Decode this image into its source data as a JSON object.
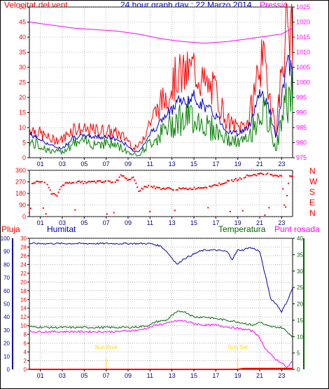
{
  "title": "24 hour graph day : 22 Marzo 2014",
  "colors": {
    "wind": "#ff0000",
    "gust": "#0000cc",
    "avg": "#008000",
    "pressure": "#ff00ff",
    "direction": "#ff0000",
    "rain": "#ff0000",
    "humidity": "#0000aa",
    "temperature": "#006600",
    "dewpoint": "#ff00ff",
    "sun": "#ffd700"
  },
  "panels": {
    "wind": {
      "left_label": "Velocitat del vent",
      "right_label": "Pressió"
    },
    "direction": {
      "compass": [
        "N",
        "W",
        "S",
        "E",
        "N"
      ]
    },
    "weather": {
      "rain_label": "Pluja",
      "humidity_label": "Humitat",
      "temperature_label": "Temperatura",
      "dewpoint_label": "Punt rosada",
      "sunrise_label": "Sun Rise",
      "sunset_label": "Sun Set"
    }
  },
  "chart_data": [
    {
      "type": "line",
      "title": "24 hour graph day : 22 Marzo 2014",
      "x_hours": [
        "01",
        "03",
        "05",
        "07",
        "09",
        "11",
        "13",
        "15",
        "17",
        "19",
        "21",
        "23"
      ],
      "y_left_ticks": [
        "0",
        "5",
        "10",
        "15",
        "20",
        "25",
        "30",
        "35",
        "40",
        "45",
        "50"
      ],
      "y_right_ticks": [
        "975",
        "980",
        "985",
        "990",
        "995",
        "1000",
        "1005",
        "1010",
        "1015",
        "1020",
        "1025"
      ],
      "ylabel_left": "Velocitat del vent",
      "ylabel_right": "Pressió",
      "grid": true,
      "pressure_x": [
        0,
        2,
        4,
        6,
        8,
        10,
        12,
        14,
        16,
        18,
        20,
        22,
        23,
        24
      ],
      "pressure": [
        1020,
        1019,
        1018,
        1017.5,
        1017,
        1016,
        1014.5,
        1013.5,
        1013,
        1013.5,
        1014.5,
        1015.5,
        1016,
        1018
      ]
    },
    {
      "type": "scatter",
      "x_hours": [
        "01",
        "03",
        "05",
        "07",
        "09",
        "11",
        "13",
        "15",
        "17",
        "19",
        "21",
        "23"
      ],
      "y_ticks": [
        "0",
        "90",
        "180",
        "270",
        "360"
      ],
      "ylabel_right": "N W S E N",
      "ylim": [
        0,
        360
      ],
      "direction_x": [
        0,
        0.5,
        1,
        1.5,
        2,
        2.5,
        3,
        3.5,
        4,
        5,
        6,
        7,
        8,
        8.3,
        8.7,
        9,
        9.5,
        10,
        10.5,
        11,
        11.5,
        12,
        13,
        14,
        15,
        16,
        17,
        18,
        19,
        20,
        21,
        21.5,
        22,
        22.5,
        23,
        23.3,
        23.7,
        24
      ],
      "direction": [
        265,
        265,
        270,
        270,
        180,
        160,
        250,
        260,
        270,
        265,
        270,
        270,
        275,
        330,
        310,
        275,
        300,
        200,
        230,
        240,
        225,
        220,
        215,
        215,
        220,
        230,
        245,
        270,
        290,
        320,
        330,
        330,
        330,
        320,
        320,
        30,
        315,
        320
      ]
    },
    {
      "type": "line",
      "x_hours": [
        "01",
        "03",
        "05",
        "07",
        "09",
        "11",
        "13",
        "15",
        "17",
        "19",
        "21",
        "23"
      ],
      "rain_ticks": [
        "0",
        "2",
        "4",
        "6",
        "8",
        "10",
        "12",
        "14",
        "16",
        "18",
        "20",
        "22",
        "24",
        "26",
        "28",
        "30"
      ],
      "humidity_ticks": [
        "0",
        "10",
        "20",
        "30",
        "40",
        "50",
        "60",
        "70",
        "80",
        "90",
        "100"
      ],
      "temperature_ticks": [
        "0",
        "5",
        "10",
        "15",
        "20",
        "25",
        "30",
        "35",
        "40"
      ],
      "sun_rise_hour": 7,
      "sun_set_hour": 19,
      "humidity_x": [
        0,
        2,
        4,
        6,
        8,
        10,
        11,
        12,
        12.5,
        13,
        13.5,
        14,
        15,
        15.5,
        16,
        17,
        18,
        18.5,
        19,
        19.5,
        20,
        20.5,
        21,
        22,
        22.5,
        23,
        23.5,
        24
      ],
      "humidity": [
        96,
        96,
        96,
        96,
        96,
        96,
        96,
        94,
        90,
        85,
        80,
        84,
        88,
        90,
        91,
        91,
        90,
        84,
        91,
        91,
        93,
        92,
        90,
        54,
        50,
        44,
        52,
        62
      ],
      "temperature_x": [
        0,
        2,
        4,
        6,
        8,
        9,
        10,
        11,
        11.5,
        12,
        12.5,
        13,
        13.5,
        14,
        14.5,
        15,
        16,
        17,
        18,
        19,
        20,
        20.5,
        21,
        21.5,
        22,
        23,
        23.5,
        24
      ],
      "temperature": [
        13,
        12.8,
        12.8,
        12.8,
        12.8,
        12.8,
        13,
        13.5,
        14.5,
        14.8,
        15,
        16.5,
        17.5,
        17.8,
        17,
        16,
        16,
        15.5,
        15,
        14.5,
        13.8,
        13.5,
        14.5,
        13.5,
        13,
        12.8,
        11.5,
        10
      ],
      "dewpoint_x": [
        0,
        2,
        4,
        6,
        8,
        9,
        10,
        11,
        11.5,
        12,
        12.5,
        13,
        13.5,
        14,
        14.5,
        15,
        16,
        17,
        18,
        19,
        20,
        20.5,
        21,
        21.5,
        22,
        22.5,
        23,
        23.5,
        24
      ],
      "dewpoint": [
        11.5,
        11.5,
        11.5,
        11.5,
        11.5,
        11.8,
        12,
        12.8,
        13.5,
        13.8,
        14,
        14.5,
        14.8,
        14.8,
        14.5,
        14,
        13.5,
        13.5,
        13,
        12.5,
        12,
        11.5,
        9.5,
        6.5,
        4.5,
        3,
        2,
        0.5,
        2.5
      ],
      "rain_x": [
        0,
        19,
        19.5,
        24
      ],
      "rain": [
        0,
        0,
        0.2,
        0.2
      ]
    }
  ]
}
